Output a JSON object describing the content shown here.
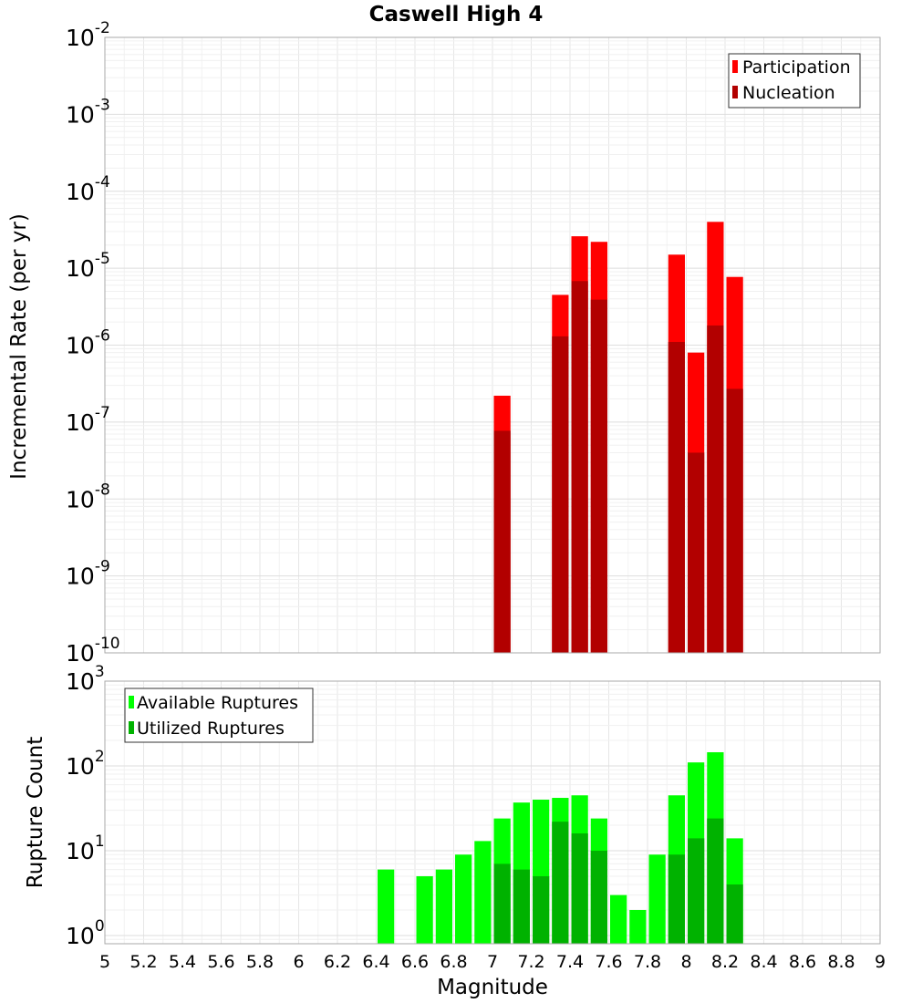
{
  "title": "Caswell High 4",
  "chart_data": [
    {
      "type": "bar",
      "yscale": "log",
      "ylabel": "Incremental Rate (per yr)",
      "ylim": [
        1e-10,
        0.01
      ],
      "xlim": [
        5,
        9
      ],
      "ytick_mantissa": "10",
      "ytick_exponents": [
        "-10",
        "-9",
        "-8",
        "-7",
        "-6",
        "-5",
        "-4",
        "-3",
        "-2"
      ],
      "grid": true,
      "legend_position": "top-right",
      "bar_width": 0.1,
      "series": [
        {
          "name": "Participation",
          "color": "#ff0000",
          "x": [
            7.05,
            7.35,
            7.45,
            7.55,
            7.95,
            8.05,
            8.15,
            8.25
          ],
          "values": [
            2.2e-07,
            4.5e-06,
            2.6e-05,
            2.2e-05,
            1.5e-05,
            8e-07,
            4e-05,
            7.7e-06
          ]
        },
        {
          "name": "Nucleation",
          "color": "#b20000",
          "x": [
            7.05,
            7.35,
            7.45,
            7.55,
            7.95,
            8.05,
            8.15,
            8.25
          ],
          "values": [
            7.7e-08,
            1.3e-06,
            6.8e-06,
            3.9e-06,
            1.1e-06,
            4e-08,
            1.8e-06,
            2.7e-07
          ]
        }
      ]
    },
    {
      "type": "bar",
      "yscale": "log",
      "ylabel": "Rupture Count",
      "xlabel": "Magnitude",
      "ylim": [
        0.8,
        1000
      ],
      "xlim": [
        5,
        9
      ],
      "ytick_mantissa": "10",
      "ytick_exponents": [
        "0",
        "1",
        "2",
        "3"
      ],
      "xticks": [
        "5",
        "5.2",
        "5.4",
        "5.6",
        "5.8",
        "6",
        "6.2",
        "6.4",
        "6.6",
        "6.8",
        "7",
        "7.2",
        "7.4",
        "7.6",
        "7.8",
        "8",
        "8.2",
        "8.4",
        "8.6",
        "8.8",
        "9"
      ],
      "grid": true,
      "legend_position": "top-left",
      "bar_width": 0.1,
      "series": [
        {
          "name": "Available Ruptures",
          "color": "#00ff00",
          "x": [
            6.45,
            6.65,
            6.75,
            6.85,
            6.95,
            7.05,
            7.15,
            7.25,
            7.35,
            7.45,
            7.55,
            7.65,
            7.75,
            7.85,
            7.95,
            8.05,
            8.15,
            8.25
          ],
          "values": [
            6,
            5,
            6,
            9,
            13,
            24,
            37,
            40,
            42,
            45,
            24,
            3,
            2,
            9,
            45,
            110,
            145,
            14
          ]
        },
        {
          "name": "Utilized Ruptures",
          "color": "#00b200",
          "x": [
            7.05,
            7.15,
            7.25,
            7.35,
            7.45,
            7.55,
            7.95,
            8.05,
            8.15,
            8.25
          ],
          "values": [
            7,
            6,
            5,
            22,
            16,
            10,
            9,
            14,
            24,
            4
          ]
        }
      ]
    }
  ]
}
